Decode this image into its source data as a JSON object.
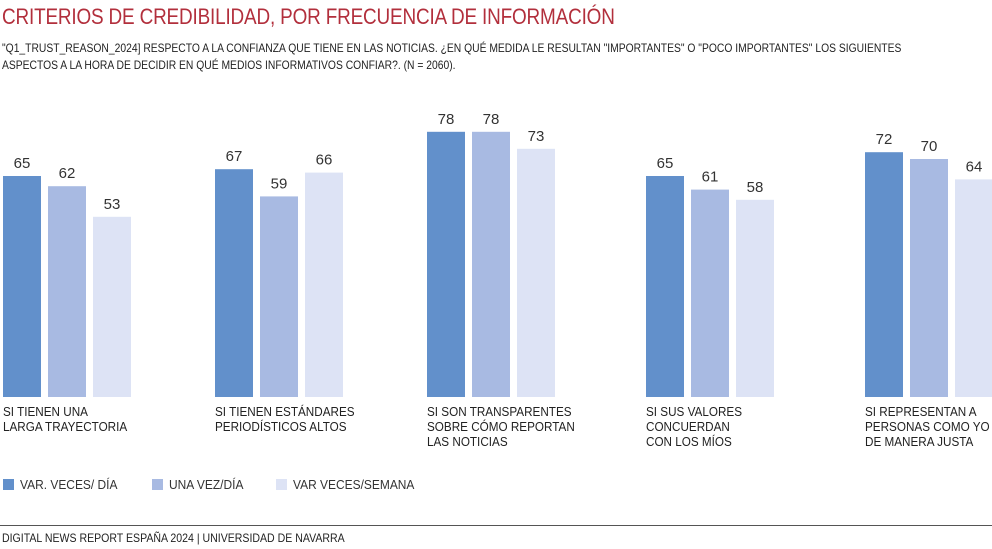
{
  "header": {
    "title": "CRITERIOS DE CREDIBILIDAD, POR FRECUENCIA DE INFORMACIÓN",
    "subtitle_lines": [
      "\"Q1_TRUST_REASON_2024] RESPECTO A LA CONFIANZA QUE TIENE EN LAS NOTICIAS. ¿EN QUÉ MEDIDA LE RESULTAN \"IMPORTANTES\" O \"POCO IMPORTANTES\" LOS SIGUIENTES",
      "ASPECTOS A LA HORA DE DECIDIR EN QUÉ MEDIOS INFORMATIVOS CONFIAR?. (N = 2060)."
    ]
  },
  "chart_data": {
    "type": "bar",
    "title": "CRITERIOS DE CREDIBILIDAD, POR FRECUENCIA DE INFORMACIÓN",
    "xlabel": "",
    "ylabel": "",
    "ylim": [
      0,
      80
    ],
    "grid": false,
    "legend_position": "bottom-left",
    "categories": [
      [
        "SI TIENEN UNA",
        "LARGA TRAYECTORIA"
      ],
      [
        "SI TIENEN ESTÁNDARES",
        "PERIODÍSTICOS ALTOS"
      ],
      [
        "SI SON TRANSPARENTES",
        "SOBRE CÓMO REPORTAN",
        "LAS NOTICIAS"
      ],
      [
        "SI SUS VALORES",
        "CONCUERDAN",
        "CON LOS MÍOS"
      ],
      [
        "SI REPRESENTAN A",
        "PERSONAS COMO YO",
        "DE MANERA JUSTA"
      ]
    ],
    "series": [
      {
        "name": "VAR. VECES/ DÍA",
        "color": "#6290cb",
        "values": [
          65,
          67,
          78,
          65,
          72
        ]
      },
      {
        "name": "UNA VEZ/DÍA",
        "color": "#a8bae2",
        "values": [
          62,
          59,
          78,
          61,
          70
        ]
      },
      {
        "name": "VAR VECES/SEMANA",
        "color": "#dde3f5",
        "values": [
          53,
          66,
          73,
          58,
          64
        ]
      }
    ]
  },
  "footer": {
    "source": "DIGITAL NEWS REPORT ESPAÑA 2024 | UNIVERSIDAD DE NAVARRA"
  }
}
